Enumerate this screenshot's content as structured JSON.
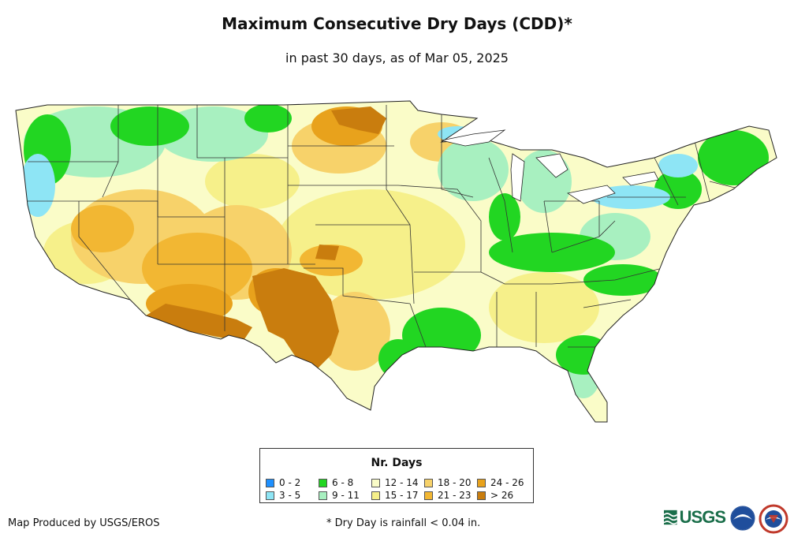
{
  "header": {
    "title": "Maximum Consecutive Dry Days (CDD)*",
    "subtitle": "in past 30 days, as of Mar 05, 2025"
  },
  "map": {
    "region": "Contiguous United States",
    "land_color": "#fafcc8",
    "border_color": "#222222"
  },
  "legend": {
    "title": "Nr. Days",
    "items": [
      {
        "label": "0 - 2",
        "color": "#1e90ff"
      },
      {
        "label": "3 - 5",
        "color": "#8ee5f5"
      },
      {
        "label": "6 - 8",
        "color": "#22d622"
      },
      {
        "label": "9 - 11",
        "color": "#a8f0c0"
      },
      {
        "label": "12 - 14",
        "color": "#fafcc8"
      },
      {
        "label": "15 - 17",
        "color": "#f6f08a"
      },
      {
        "label": "18 - 20",
        "color": "#f7d26a"
      },
      {
        "label": "21 - 23",
        "color": "#f2b733"
      },
      {
        "label": "24 - 26",
        "color": "#e8a21c"
      },
      {
        "label": "> 26",
        "color": "#c97d0e"
      }
    ]
  },
  "footer": {
    "producer": "Map Produced by USGS/EROS",
    "footnote": "* Dry Day is rainfall < 0.04 in."
  },
  "logos": {
    "usgs_text": "USGS",
    "usgs_color": "#1a6e4a"
  }
}
